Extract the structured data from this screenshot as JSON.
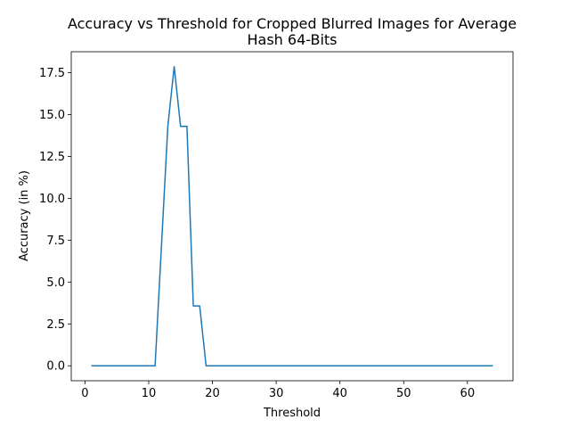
{
  "chart_data": {
    "type": "line",
    "title_line1": "Accuracy vs Threshold for Cropped Blurred Images for Average",
    "title_line2": "Hash 64-Bits",
    "xlabel": "Threshold",
    "ylabel": "Accuracy (in %)",
    "xlim": [
      -2.15,
      67.15
    ],
    "ylim": [
      -0.893,
      18.75
    ],
    "xticks": [
      0,
      10,
      20,
      30,
      40,
      50,
      60
    ],
    "yticks": [
      0.0,
      2.5,
      5.0,
      7.5,
      10.0,
      12.5,
      15.0,
      17.5
    ],
    "ytick_labels": [
      "0.0",
      "2.5",
      "5.0",
      "7.5",
      "10.0",
      "12.5",
      "15.0",
      "17.5"
    ],
    "grid": false,
    "series": [
      {
        "color": "#1f77b4",
        "x": [
          1,
          2,
          3,
          4,
          5,
          6,
          7,
          8,
          9,
          10,
          11,
          12,
          13,
          14,
          15,
          16,
          17,
          18,
          19,
          20,
          21,
          22,
          23,
          24,
          25,
          26,
          27,
          28,
          29,
          30,
          31,
          32,
          33,
          34,
          35,
          36,
          37,
          38,
          39,
          40,
          41,
          42,
          43,
          44,
          45,
          46,
          47,
          48,
          49,
          50,
          51,
          52,
          53,
          54,
          55,
          56,
          57,
          58,
          59,
          60,
          61,
          62,
          63,
          64
        ],
        "y": [
          0,
          0,
          0,
          0,
          0,
          0,
          0,
          0,
          0,
          0,
          0,
          7.14,
          14.29,
          17.86,
          14.29,
          14.29,
          3.57,
          3.57,
          0,
          0,
          0,
          0,
          0,
          0,
          0,
          0,
          0,
          0,
          0,
          0,
          0,
          0,
          0,
          0,
          0,
          0,
          0,
          0,
          0,
          0,
          0,
          0,
          0,
          0,
          0,
          0,
          0,
          0,
          0,
          0,
          0,
          0,
          0,
          0,
          0,
          0,
          0,
          0,
          0,
          0,
          0,
          0,
          0,
          0
        ]
      }
    ]
  }
}
